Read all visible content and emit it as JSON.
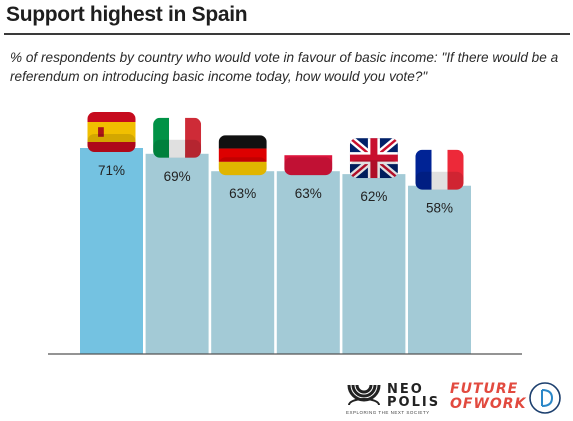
{
  "header": {
    "title": "Support highest in Spain",
    "subtitle": "% of respondents by country who would vote in favour of basic income: \"If there would be a referendum on introducing basic income today, how would you vote?\""
  },
  "colors": {
    "highlight_bar": "#74c2e1",
    "bar": "#a3cad6",
    "baseline": "#555555",
    "label": "#222222"
  },
  "chart_data": {
    "type": "bar",
    "categories": [
      "Spain",
      "Italy",
      "Germany",
      "Poland",
      "United Kingdom",
      "France"
    ],
    "values": [
      71,
      69,
      63,
      63,
      62,
      58
    ],
    "data_labels": [
      "71%",
      "69%",
      "63%",
      "63%",
      "62%",
      "58%"
    ],
    "category_icons": [
      "spain-flag-icon",
      "italy-flag-icon",
      "germany-flag-icon",
      "poland-flag-icon",
      "uk-flag-icon",
      "france-flag-icon"
    ],
    "highlight": "Spain",
    "title": "Support highest in Spain",
    "ylim": [
      0,
      100
    ],
    "grid": false,
    "legend": "none"
  },
  "footer": {
    "neopolis": {
      "name": "NEO\nPOLIS",
      "tagline": "EXPLORING THE NEXT SOCIETY"
    },
    "future_of_work": {
      "text": "FUTURE\nOFWORK"
    },
    "third_logo": "d-logo-icon"
  }
}
